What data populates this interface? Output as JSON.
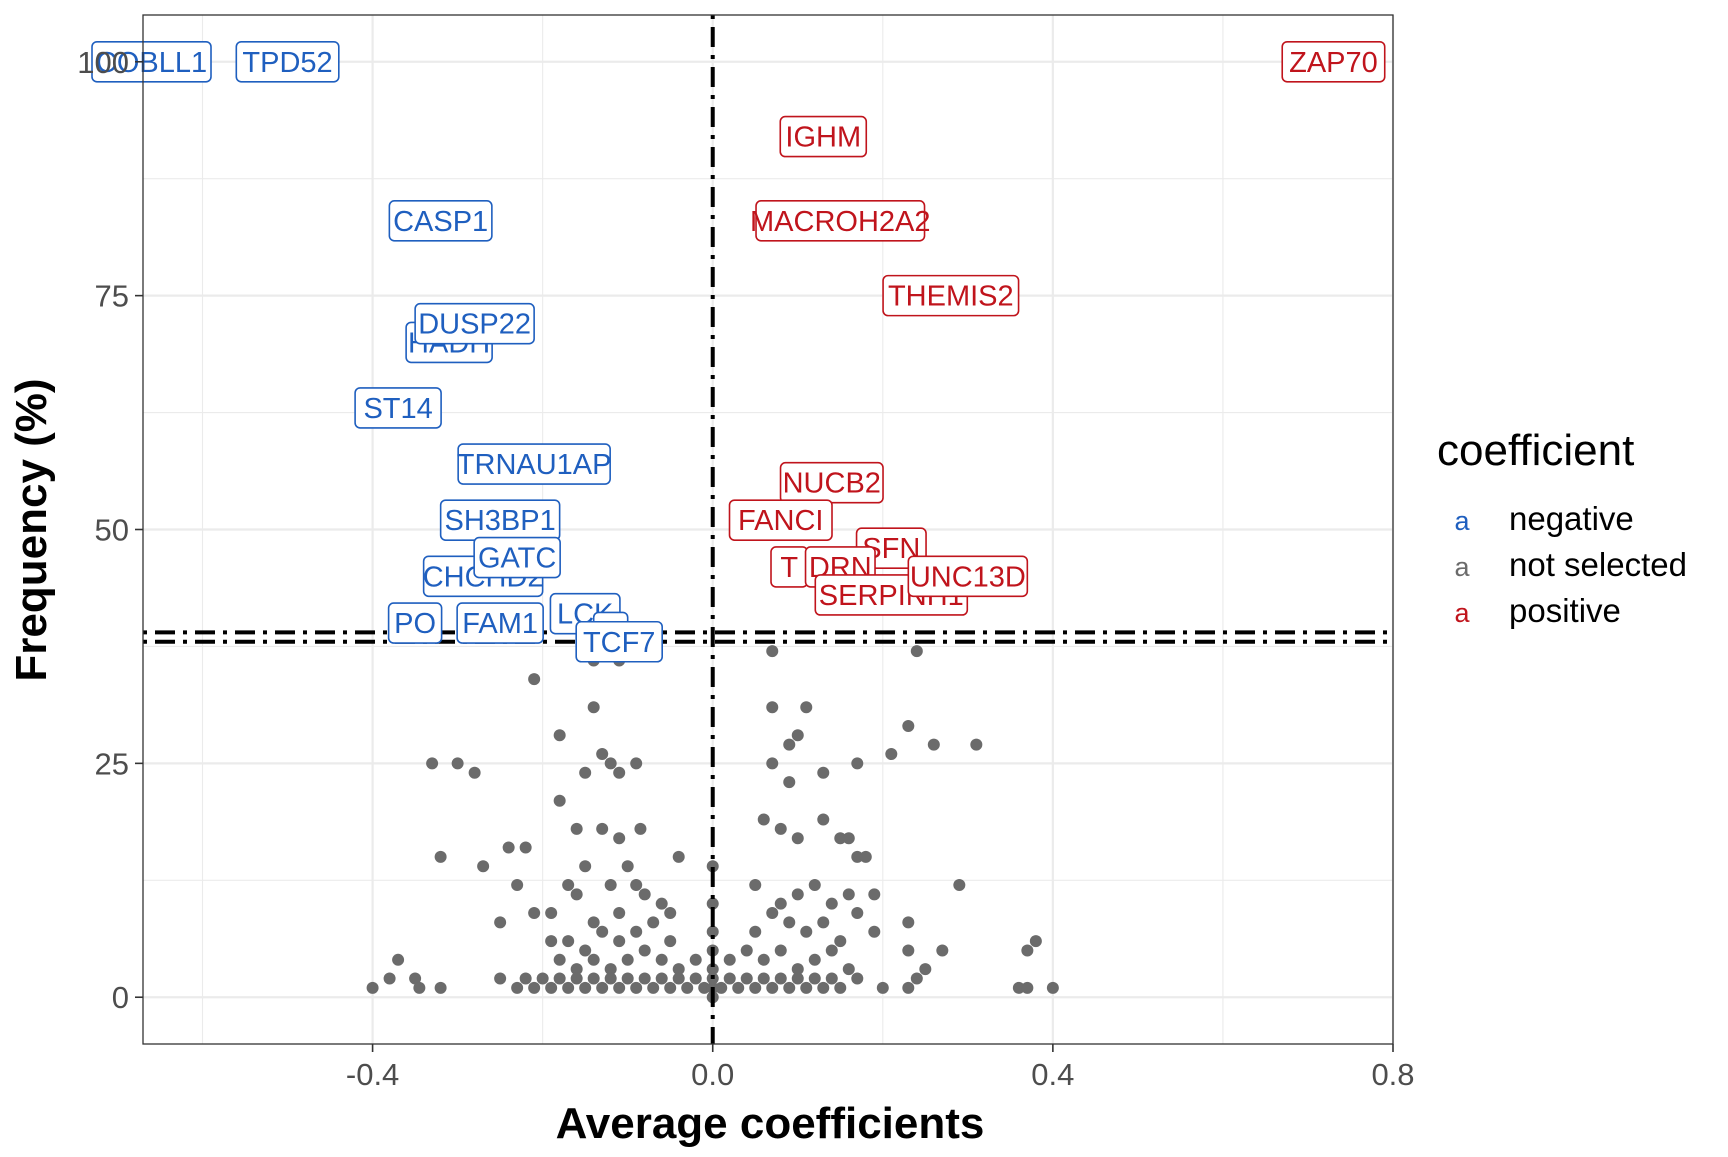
{
  "chart_data": {
    "type": "scatter",
    "title": "",
    "xlabel": "Average coefficients",
    "ylabel": "Frequency (%)",
    "xlim": [
      -0.67,
      0.8
    ],
    "ylim": [
      -5,
      105
    ],
    "x_ticks": [
      -0.4,
      0.0,
      0.4,
      0.8
    ],
    "x_tick_labels": [
      "-0.4",
      "0.0",
      "0.4",
      "0.8"
    ],
    "y_ticks": [
      0,
      25,
      50,
      75,
      100
    ],
    "y_tick_labels": [
      "0",
      "25",
      "50",
      "75",
      "100"
    ],
    "grid": true,
    "reference_lines": [
      {
        "orientation": "vertical",
        "value": 0.0,
        "style": "dot-dash"
      },
      {
        "orientation": "horizontal",
        "value": 39,
        "style": "dot-dash"
      },
      {
        "orientation": "horizontal",
        "value": 38,
        "style": "dot-dash"
      }
    ],
    "legend": {
      "title": "coefficient",
      "placement": "right",
      "entries": [
        {
          "key": "a",
          "label": "negative",
          "color": "#1f5fbf"
        },
        {
          "key": "a",
          "label": "not selected",
          "color": "#6b6b6b"
        },
        {
          "key": "a",
          "label": "positive",
          "color": "#c0141c"
        }
      ]
    },
    "colors": {
      "negative": "#1f5fbf",
      "not_selected": "#6b6b6b",
      "positive": "#c0141c"
    },
    "labeled_points": [
      {
        "label": "COBLL1",
        "x": -0.66,
        "y": 100,
        "group": "negative"
      },
      {
        "label": "TPD52",
        "x": -0.5,
        "y": 100,
        "group": "negative"
      },
      {
        "label": "CASP1",
        "x": -0.32,
        "y": 83,
        "group": "negative"
      },
      {
        "label": "HADH",
        "x": -0.31,
        "y": 70,
        "group": "negative"
      },
      {
        "label": "DUSP22",
        "x": -0.28,
        "y": 72,
        "group": "negative"
      },
      {
        "label": "ST14",
        "x": -0.37,
        "y": 63,
        "group": "negative"
      },
      {
        "label": "TRNAU1AP",
        "x": -0.21,
        "y": 57,
        "group": "negative"
      },
      {
        "label": "SH3BP1",
        "x": -0.25,
        "y": 51,
        "group": "negative"
      },
      {
        "label": "CHCHD2",
        "x": -0.27,
        "y": 45,
        "group": "negative"
      },
      {
        "label": "GATC",
        "x": -0.23,
        "y": 47,
        "group": "negative"
      },
      {
        "label": "PO",
        "x": -0.35,
        "y": 40,
        "group": "negative"
      },
      {
        "label": "FAM1",
        "x": -0.25,
        "y": 40,
        "group": "negative"
      },
      {
        "label": "LCK",
        "x": -0.15,
        "y": 41,
        "group": "negative"
      },
      {
        "label": "",
        "x": -0.12,
        "y": 39,
        "group": "negative"
      },
      {
        "label": "TCF7",
        "x": -0.11,
        "y": 38,
        "group": "negative"
      },
      {
        "label": "ZAP70",
        "x": 0.73,
        "y": 100,
        "group": "positive"
      },
      {
        "label": "IGHM",
        "x": 0.13,
        "y": 92,
        "group": "positive"
      },
      {
        "label": "MACROH2A2",
        "x": 0.15,
        "y": 83,
        "group": "positive"
      },
      {
        "label": "THEMIS2",
        "x": 0.28,
        "y": 75,
        "group": "positive"
      },
      {
        "label": "NUCB2",
        "x": 0.14,
        "y": 55,
        "group": "positive"
      },
      {
        "label": "FANCI",
        "x": 0.08,
        "y": 51,
        "group": "positive"
      },
      {
        "label": "SFN",
        "x": 0.21,
        "y": 48,
        "group": "positive"
      },
      {
        "label": "T",
        "x": 0.09,
        "y": 46,
        "group": "positive"
      },
      {
        "label": "DRN",
        "x": 0.15,
        "y": 46,
        "group": "positive"
      },
      {
        "label": "SERPINH1",
        "x": 0.21,
        "y": 43,
        "group": "positive"
      },
      {
        "label": "UNC13D",
        "x": 0.3,
        "y": 45,
        "group": "positive"
      }
    ],
    "not_selected_points": [
      [
        -0.4,
        1
      ],
      [
        -0.38,
        2
      ],
      [
        -0.37,
        4
      ],
      [
        -0.35,
        2
      ],
      [
        -0.345,
        1
      ],
      [
        -0.32,
        1
      ],
      [
        -0.33,
        25
      ],
      [
        -0.3,
        25
      ],
      [
        -0.28,
        24
      ],
      [
        -0.32,
        15
      ],
      [
        -0.27,
        14
      ],
      [
        -0.24,
        16
      ],
      [
        -0.22,
        16
      ],
      [
        -0.23,
        12
      ],
      [
        -0.25,
        8
      ],
      [
        -0.21,
        9
      ],
      [
        -0.19,
        9
      ],
      [
        -0.21,
        34
      ],
      [
        -0.18,
        28
      ],
      [
        -0.14,
        31
      ],
      [
        -0.13,
        26
      ],
      [
        -0.12,
        25
      ],
      [
        -0.11,
        24
      ],
      [
        -0.09,
        25
      ],
      [
        -0.15,
        24
      ],
      [
        -0.18,
        21
      ],
      [
        -0.16,
        18
      ],
      [
        -0.13,
        18
      ],
      [
        -0.11,
        17
      ],
      [
        -0.085,
        18
      ],
      [
        -0.14,
        36
      ],
      [
        -0.11,
        36
      ],
      [
        -0.17,
        12
      ],
      [
        -0.15,
        14
      ],
      [
        -0.12,
        12
      ],
      [
        -0.1,
        14
      ],
      [
        -0.09,
        12
      ],
      [
        -0.16,
        11
      ],
      [
        -0.14,
        8
      ],
      [
        -0.11,
        9
      ],
      [
        -0.08,
        11
      ],
      [
        -0.06,
        10
      ],
      [
        -0.04,
        15
      ],
      [
        -0.05,
        9
      ],
      [
        -0.19,
        6
      ],
      [
        -0.17,
        6
      ],
      [
        -0.15,
        5
      ],
      [
        -0.13,
        7
      ],
      [
        -0.11,
        6
      ],
      [
        -0.09,
        7
      ],
      [
        -0.07,
        8
      ],
      [
        -0.05,
        6
      ],
      [
        -0.18,
        4
      ],
      [
        -0.16,
        3
      ],
      [
        -0.14,
        4
      ],
      [
        -0.12,
        3
      ],
      [
        -0.1,
        4
      ],
      [
        -0.08,
        5
      ],
      [
        -0.06,
        4
      ],
      [
        -0.04,
        3
      ],
      [
        -0.02,
        4
      ],
      [
        -0.25,
        2
      ],
      [
        -0.23,
        1
      ],
      [
        -0.22,
        2
      ],
      [
        -0.21,
        1
      ],
      [
        -0.2,
        2
      ],
      [
        -0.19,
        1
      ],
      [
        -0.18,
        2
      ],
      [
        -0.17,
        1
      ],
      [
        -0.16,
        2
      ],
      [
        -0.15,
        1
      ],
      [
        -0.14,
        2
      ],
      [
        -0.13,
        1
      ],
      [
        -0.12,
        2
      ],
      [
        -0.11,
        1
      ],
      [
        -0.1,
        2
      ],
      [
        -0.09,
        1
      ],
      [
        -0.08,
        2
      ],
      [
        -0.07,
        1
      ],
      [
        -0.06,
        2
      ],
      [
        -0.05,
        1
      ],
      [
        -0.04,
        2
      ],
      [
        -0.03,
        1
      ],
      [
        -0.02,
        2
      ],
      [
        -0.01,
        1
      ],
      [
        0.0,
        0
      ],
      [
        0.0,
        1
      ],
      [
        0.0,
        2
      ],
      [
        0.0,
        3
      ],
      [
        0.0,
        5
      ],
      [
        0.0,
        7
      ],
      [
        0.0,
        10
      ],
      [
        0.0,
        14
      ],
      [
        0.01,
        1
      ],
      [
        0.02,
        2
      ],
      [
        0.03,
        1
      ],
      [
        0.04,
        2
      ],
      [
        0.05,
        1
      ],
      [
        0.06,
        2
      ],
      [
        0.07,
        1
      ],
      [
        0.08,
        2
      ],
      [
        0.09,
        1
      ],
      [
        0.1,
        2
      ],
      [
        0.11,
        1
      ],
      [
        0.12,
        2
      ],
      [
        0.13,
        1
      ],
      [
        0.14,
        2
      ],
      [
        0.15,
        1
      ],
      [
        0.17,
        2
      ],
      [
        0.02,
        4
      ],
      [
        0.04,
        5
      ],
      [
        0.06,
        4
      ],
      [
        0.08,
        5
      ],
      [
        0.1,
        3
      ],
      [
        0.12,
        4
      ],
      [
        0.14,
        5
      ],
      [
        0.16,
        3
      ],
      [
        0.05,
        7
      ],
      [
        0.07,
        9
      ],
      [
        0.09,
        8
      ],
      [
        0.11,
        7
      ],
      [
        0.13,
        8
      ],
      [
        0.15,
        6
      ],
      [
        0.17,
        9
      ],
      [
        0.19,
        7
      ],
      [
        0.05,
        12
      ],
      [
        0.08,
        10
      ],
      [
        0.1,
        11
      ],
      [
        0.12,
        12
      ],
      [
        0.14,
        10
      ],
      [
        0.16,
        11
      ],
      [
        0.19,
        11
      ],
      [
        0.06,
        19
      ],
      [
        0.08,
        18
      ],
      [
        0.1,
        17
      ],
      [
        0.13,
        19
      ],
      [
        0.15,
        17
      ],
      [
        0.16,
        17
      ],
      [
        0.17,
        15
      ],
      [
        0.18,
        15
      ],
      [
        0.07,
        25
      ],
      [
        0.09,
        27
      ],
      [
        0.1,
        28
      ],
      [
        0.09,
        23
      ],
      [
        0.13,
        24
      ],
      [
        0.17,
        25
      ],
      [
        0.21,
        26
      ],
      [
        0.07,
        31
      ],
      [
        0.11,
        31
      ],
      [
        0.07,
        37
      ],
      [
        0.24,
        37
      ],
      [
        0.23,
        29
      ],
      [
        0.26,
        27
      ],
      [
        0.31,
        27
      ],
      [
        0.29,
        12
      ],
      [
        0.23,
        8
      ],
      [
        0.23,
        5
      ],
      [
        0.27,
        5
      ],
      [
        0.25,
        3
      ],
      [
        0.24,
        2
      ],
      [
        0.2,
        1
      ],
      [
        0.23,
        1
      ],
      [
        0.36,
        1
      ],
      [
        0.37,
        1
      ],
      [
        0.4,
        1
      ],
      [
        0.37,
        5
      ],
      [
        0.38,
        6
      ]
    ]
  }
}
